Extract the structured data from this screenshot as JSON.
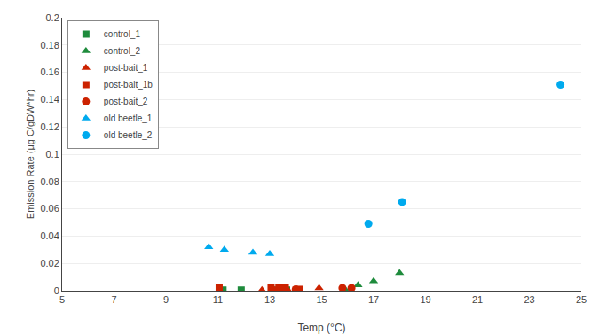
{
  "chart_data": {
    "type": "scatter",
    "xlabel": "Temp (°C)",
    "ylabel": "Emission Rate (μg C/gDW*hr)",
    "xlim": [
      5,
      25
    ],
    "ylim": [
      0,
      0.2
    ],
    "xticks": [
      5,
      7,
      9,
      11,
      13,
      15,
      17,
      19,
      21,
      23,
      25
    ],
    "yticks": [
      0,
      0.02,
      0.04,
      0.06,
      0.08,
      0.1,
      0.12,
      0.14,
      0.16,
      0.18,
      0.2
    ],
    "grid": "y",
    "legend": "upper left",
    "series": [
      {
        "name": "control_1",
        "color": "#1e8b3c",
        "marker": "square",
        "x": [
          11.2,
          11.9,
          13.2,
          13.65
        ],
        "values": [
          0.0005,
          0.0005,
          0.0005,
          0.0005
        ]
      },
      {
        "name": "control_2",
        "color": "#1e8b3c",
        "marker": "triangle-up",
        "x": [
          15.9,
          16.4,
          17.0,
          18.0
        ],
        "values": [
          0.001,
          0.004,
          0.007,
          0.013
        ]
      },
      {
        "name": "post-bait_1",
        "color": "#cc2200",
        "marker": "triangle-up",
        "x": [
          11.05,
          12.7,
          13.2,
          13.7,
          14.9
        ],
        "values": [
          0.0005,
          0.0005,
          0.0005,
          0.0005,
          0.002
        ]
      },
      {
        "name": "post-bait_1b",
        "color": "#cc2200",
        "marker": "square",
        "x": [
          11.05,
          13.05,
          13.35,
          13.6,
          14.15
        ],
        "values": [
          0.002,
          0.002,
          0.002,
          0.002,
          0.001
        ]
      },
      {
        "name": "post-bait_2",
        "color": "#cc2200",
        "marker": "circle",
        "x": [
          13.5,
          14.0,
          15.8,
          16.15
        ],
        "values": [
          0.001,
          0.001,
          0.002,
          0.002
        ]
      },
      {
        "name": "old beetle_1",
        "color": "#00aaee",
        "marker": "triangle-up",
        "x": [
          10.65,
          11.25,
          12.35,
          13.0
        ],
        "values": [
          0.032,
          0.03,
          0.028,
          0.027
        ]
      },
      {
        "name": "old beetle_2",
        "color": "#00aaee",
        "marker": "circle",
        "x": [
          16.8,
          18.1,
          24.2
        ],
        "values": [
          0.049,
          0.065,
          0.151
        ]
      }
    ]
  }
}
